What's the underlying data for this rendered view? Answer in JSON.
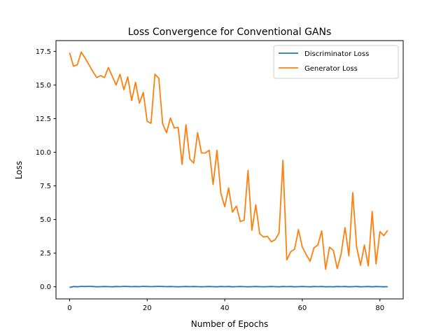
{
  "chart_data": {
    "type": "line",
    "title": "Loss Convergence for Conventional GANs",
    "xlabel": "Number of Epochs",
    "ylabel": "Loss",
    "xlim": [
      -3.5,
      86.0
    ],
    "ylim": [
      -0.9,
      18.3
    ],
    "xticks": [
      0,
      20,
      40,
      60,
      80
    ],
    "yticks": [
      0.0,
      2.5,
      5.0,
      7.5,
      10.0,
      12.5,
      15.0,
      17.5
    ],
    "xtick_labels": [
      "0",
      "20",
      "40",
      "60",
      "80"
    ],
    "ytick_labels": [
      "0.0",
      "2.5",
      "5.0",
      "7.5",
      "10.0",
      "12.5",
      "15.0",
      "17.5"
    ],
    "grid": false,
    "legend_position": "top-right",
    "series": [
      {
        "name": "Discriminator Loss",
        "color": "#1f77b4",
        "x": [
          0,
          1,
          2,
          3,
          4,
          5,
          6,
          7,
          8,
          9,
          10,
          11,
          12,
          13,
          14,
          15,
          16,
          17,
          18,
          19,
          20,
          21,
          22,
          23,
          24,
          25,
          26,
          27,
          28,
          29,
          30,
          31,
          32,
          33,
          34,
          35,
          36,
          37,
          38,
          39,
          40,
          41,
          42,
          43,
          44,
          45,
          46,
          47,
          48,
          49,
          50,
          51,
          52,
          53,
          54,
          55,
          56,
          57,
          58,
          59,
          60,
          61,
          62,
          63,
          64,
          65,
          66,
          67,
          68,
          69,
          70,
          71,
          72,
          73,
          74,
          75,
          76,
          77,
          78,
          79,
          80,
          81,
          82
        ],
        "values": [
          -0.05,
          0.02,
          0.0,
          0.03,
          0.02,
          0.03,
          0.02,
          0.0,
          0.01,
          0.02,
          0.01,
          0.0,
          0.02,
          0.01,
          0.03,
          0.02,
          0.01,
          0.02,
          0.01,
          0.03,
          0.02,
          0.01,
          0.02,
          0.03,
          0.02,
          0.01,
          0.02,
          0.01,
          0.0,
          0.01,
          0.02,
          0.01,
          0.02,
          0.01,
          0.0,
          0.01,
          0.02,
          0.01,
          0.0,
          0.02,
          0.01,
          0.02,
          0.0,
          0.01,
          0.02,
          0.01,
          0.0,
          0.01,
          0.02,
          0.01,
          0.0,
          0.01,
          0.02,
          0.01,
          0.0,
          0.02,
          0.01,
          0.02,
          0.0,
          0.01,
          0.02,
          0.01,
          0.0,
          0.02,
          0.01,
          0.02,
          0.0,
          0.01,
          0.0,
          0.02,
          0.01,
          0.02,
          0.0,
          0.01,
          0.02,
          0.0,
          0.01,
          0.02,
          0.0,
          0.02,
          0.01,
          0.0,
          0.01
        ]
      },
      {
        "name": "Generator Loss",
        "color": "#ff7f0e",
        "x": [
          0,
          1,
          2,
          3,
          4,
          5,
          6,
          7,
          8,
          9,
          10,
          11,
          12,
          13,
          14,
          15,
          16,
          17,
          18,
          19,
          20,
          21,
          22,
          23,
          24,
          25,
          26,
          27,
          28,
          29,
          30,
          31,
          32,
          33,
          34,
          35,
          36,
          37,
          38,
          39,
          40,
          41,
          42,
          43,
          44,
          45,
          46,
          47,
          48,
          49,
          50,
          51,
          52,
          53,
          54,
          55,
          56,
          57,
          58,
          59,
          60,
          61,
          62,
          63,
          64,
          65,
          66,
          67,
          68,
          69,
          70,
          71,
          72,
          73,
          74,
          75,
          76,
          77,
          78,
          79,
          80,
          81,
          82
        ],
        "values": [
          17.4,
          16.4,
          16.5,
          17.45,
          17.0,
          16.5,
          16.0,
          15.55,
          15.7,
          15.55,
          16.3,
          15.65,
          15.0,
          15.8,
          14.65,
          15.6,
          13.85,
          15.2,
          13.65,
          14.45,
          12.3,
          12.15,
          15.8,
          15.5,
          12.1,
          11.45,
          12.55,
          11.8,
          11.85,
          9.1,
          12.05,
          9.5,
          9.2,
          11.45,
          9.95,
          9.95,
          10.15,
          7.6,
          10.15,
          6.95,
          5.95,
          7.35,
          5.55,
          6.0,
          4.85,
          4.95,
          8.65,
          4.2,
          6.1,
          3.95,
          3.7,
          3.75,
          3.35,
          3.5,
          4.0,
          9.4,
          2.0,
          2.6,
          2.8,
          4.25,
          2.95,
          2.4,
          1.9,
          2.9,
          3.1,
          4.15,
          1.3,
          2.95,
          2.7,
          1.35,
          2.45,
          4.4,
          2.3,
          7.0,
          2.95,
          1.6,
          3.1,
          1.55,
          5.6,
          1.7,
          4.1,
          3.8,
          4.2
        ]
      }
    ]
  }
}
